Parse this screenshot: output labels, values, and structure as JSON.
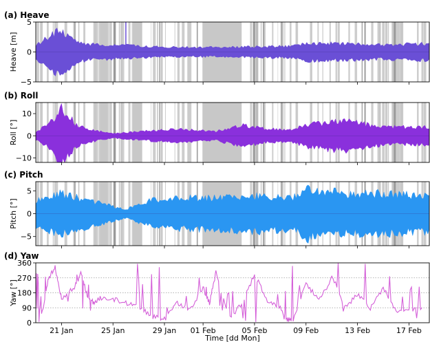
{
  "chart_data": [
    {
      "type": "area",
      "title": "(a) Heave",
      "ylabel": "Heave [m]",
      "ylim": [
        -5,
        5
      ],
      "yticks": [
        "5",
        "0",
        "−5"
      ],
      "series": [
        {
          "color": "#6a4fd6"
        }
      ],
      "envelope": {
        "x": [
          "2023-01-19",
          "2023-01-20",
          "2023-01-21",
          "2023-01-22",
          "2023-01-23",
          "2023-01-25",
          "2023-01-27",
          "2023-01-30",
          "2023-02-02",
          "2023-02-05",
          "2023-02-08",
          "2023-02-09",
          "2023-02-12",
          "2023-02-15",
          "2023-02-18"
        ],
        "upper": [
          1.2,
          2.5,
          3.8,
          2.0,
          1.3,
          1.2,
          1.0,
          0.8,
          0.8,
          0.9,
          1.0,
          1.5,
          1.4,
          1.2,
          1.4
        ],
        "lower": [
          -1.2,
          -2.5,
          -4.3,
          -2.0,
          -1.3,
          -1.2,
          -1.0,
          -0.8,
          -0.8,
          -0.9,
          -1.0,
          -1.5,
          -1.4,
          -1.2,
          -1.4
        ]
      },
      "spikes": [
        {
          "x": "2023-01-26",
          "y": 5
        }
      ]
    },
    {
      "type": "area",
      "title": "(b) Roll",
      "ylabel": "Roll [°]",
      "ylim": [
        -12,
        15
      ],
      "yticks": [
        "10",
        "0",
        "−10"
      ],
      "series": [
        {
          "color": "#8a30dc"
        }
      ],
      "envelope": {
        "x": [
          "2023-01-19",
          "2023-01-20",
          "2023-01-21",
          "2023-01-22",
          "2023-01-23",
          "2023-01-25",
          "2023-01-27",
          "2023-01-30",
          "2023-02-02",
          "2023-02-04",
          "2023-02-06",
          "2023-02-08",
          "2023-02-09",
          "2023-02-12",
          "2023-02-15",
          "2023-02-18"
        ],
        "upper": [
          2,
          5,
          13,
          6,
          3,
          1,
          2,
          3,
          2,
          5,
          3,
          3,
          5,
          7,
          4,
          4
        ],
        "lower": [
          -2,
          -5,
          -13,
          -6,
          -3,
          -1,
          -2,
          -3,
          -2,
          -5,
          -3,
          -3,
          -5,
          -7,
          -4,
          -4
        ]
      }
    },
    {
      "type": "area",
      "title": "(c) Pitch",
      "ylabel": "Pitch [°]",
      "ylim": [
        -7,
        7
      ],
      "yticks": [
        "5",
        "0",
        "−5"
      ],
      "series": [
        {
          "color": "#2a96f2"
        }
      ],
      "envelope": {
        "x": [
          "2023-01-19",
          "2023-01-21",
          "2023-01-23",
          "2023-01-26",
          "2023-01-28",
          "2023-01-31",
          "2023-02-02",
          "2023-02-05",
          "2023-02-08",
          "2023-02-09",
          "2023-02-12",
          "2023-02-15",
          "2023-02-18"
        ],
        "upper": [
          3.0,
          4.5,
          3.0,
          1.0,
          3.0,
          3.5,
          3.5,
          4.0,
          3.5,
          5.5,
          4.5,
          4.5,
          4.0
        ],
        "lower": [
          -3.0,
          -4.5,
          -3.0,
          -1.0,
          -3.0,
          -3.5,
          -3.5,
          -4.0,
          -3.5,
          -5.5,
          -4.5,
          -4.5,
          -4.0
        ]
      }
    },
    {
      "type": "line",
      "title": "(d) Yaw",
      "ylabel": "Yaw [°]",
      "xlabel": "Time [dd Mon]",
      "ylim": [
        0,
        360
      ],
      "yticks": [
        "360",
        "270",
        "180",
        "90",
        "0"
      ],
      "grid": true,
      "series": [
        {
          "color": "#d45fd8",
          "x": [
            "2023-01-19",
            "2023-01-19 12:00",
            "2023-01-20",
            "2023-01-20 12:00",
            "2023-01-21",
            "2023-01-22",
            "2023-01-22 12:00",
            "2023-01-23",
            "2023-01-23 12:00",
            "2023-01-24",
            "2023-01-25",
            "2023-01-26",
            "2023-01-27",
            "2023-01-28",
            "2023-01-29",
            "2023-01-30",
            "2023-01-31",
            "2023-02-01",
            "2023-02-01 12:00",
            "2023-02-02",
            "2023-02-03",
            "2023-02-04",
            "2023-02-05",
            "2023-02-06",
            "2023-02-07",
            "2023-02-07 12:00",
            "2023-02-08",
            "2023-02-09",
            "2023-02-10",
            "2023-02-11",
            "2023-02-12",
            "2023-02-13",
            "2023-02-14",
            "2023-02-15",
            "2023-02-16",
            "2023-02-17",
            "2023-02-18"
          ],
          "y": [
            90,
            60,
            270,
            330,
            150,
            210,
            300,
            160,
            120,
            150,
            140,
            120,
            100,
            40,
            20,
            120,
            80,
            210,
            120,
            300,
            20,
            110,
            290,
            130,
            90,
            20,
            10,
            240,
            130,
            270,
            90,
            170,
            90,
            210,
            70,
            80,
            90
          ]
        }
      ]
    }
  ],
  "x_axis": {
    "range": [
      "2023-01-19",
      "2023-02-18 14:00"
    ],
    "ticks": [
      {
        "date": "2023-01-21",
        "label": "21 Jan"
      },
      {
        "date": "2023-01-25",
        "label": "25 Jan"
      },
      {
        "date": "2023-01-29",
        "label": "29 Jan"
      },
      {
        "date": "2023-02-01",
        "label": "01 Feb"
      },
      {
        "date": "2023-02-05",
        "label": "05 Feb"
      },
      {
        "date": "2023-02-09",
        "label": "09 Feb"
      },
      {
        "date": "2023-02-13",
        "label": "13 Feb"
      },
      {
        "date": "2023-02-17",
        "label": "17 Feb"
      }
    ]
  },
  "shading": {
    "color": "#c8c8c8",
    "blocks": [
      [
        "2023-02-01",
        "2023-02-04"
      ],
      [
        "2023-01-26 12:00",
        "2023-01-27 06:00"
      ],
      [
        "2023-01-24",
        "2023-01-24 10:00"
      ]
    ]
  },
  "colors": {
    "shading": "#c8c8c8",
    "grid": "#9a9a9a"
  }
}
